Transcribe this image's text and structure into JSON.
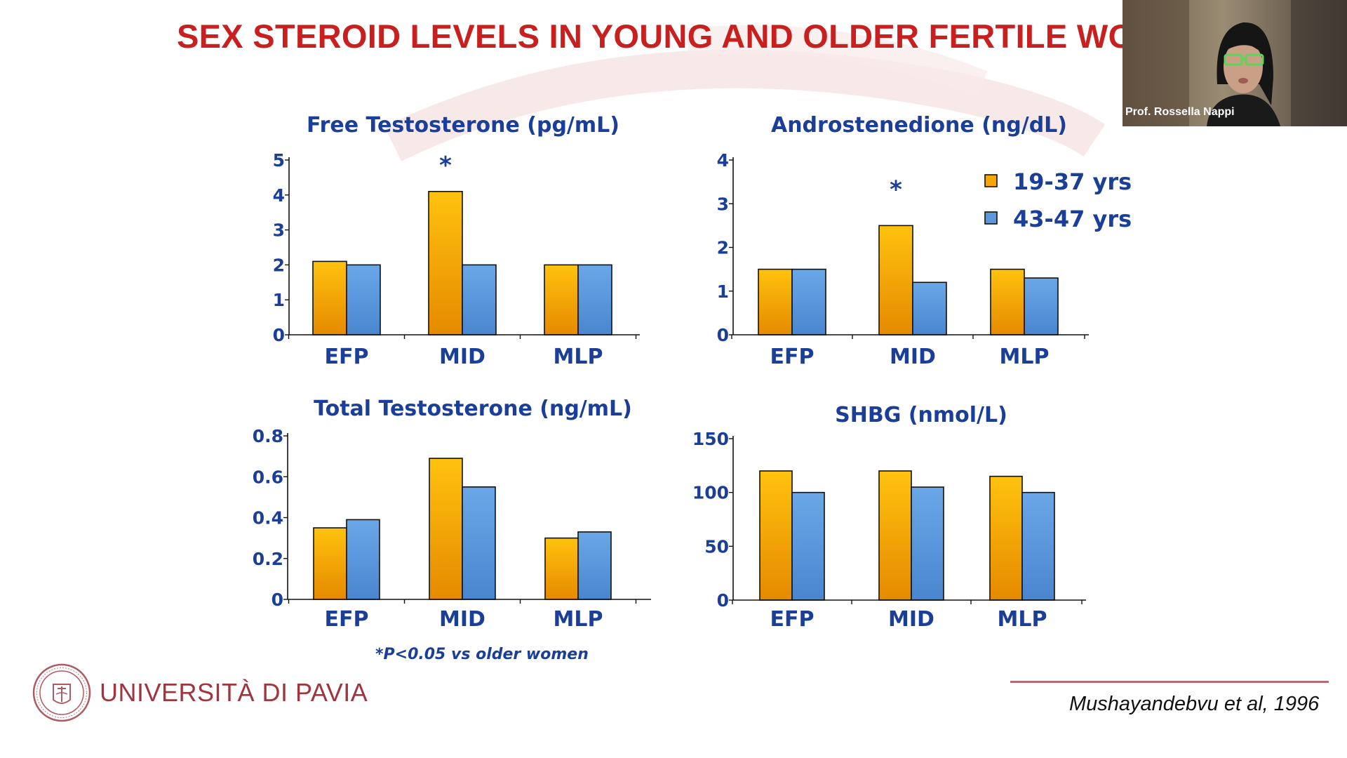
{
  "slide": {
    "title": "SEX STEROID LEVELS IN YOUNG AND OLDER FERTILE WOM",
    "footnote": "*P<0.05 vs older women",
    "university": "UNIVERSITÀ DI PAVIA",
    "citation": "Mushayandebvu et al, 1996"
  },
  "webcam": {
    "speaker_name": "Prof. Rossella Nappi"
  },
  "colors": {
    "title": "#c8201e",
    "text": "#1b3f99",
    "young_top": "#ffc20e",
    "young_bottom": "#e58a00",
    "old_top": "#6aa7e8",
    "old_bottom": "#4a86cf",
    "university": "#a0353e"
  },
  "legend": {
    "items": [
      {
        "label": "19-37 yrs",
        "color": "#f7a800"
      },
      {
        "label": "43-47 yrs",
        "color": "#5b97dc"
      }
    ]
  },
  "chart_data": [
    {
      "type": "bar",
      "title": "Free Testosterone (pg/mL)",
      "categories": [
        "EFP",
        "MID",
        "MLP"
      ],
      "series": [
        {
          "name": "19-37 yrs",
          "values": [
            2.1,
            4.1,
            2.0
          ]
        },
        {
          "name": "43-47 yrs",
          "values": [
            2.0,
            2.0,
            2.0
          ]
        }
      ],
      "ylim": [
        0,
        5
      ],
      "yticks": [
        0,
        1,
        2,
        3,
        4,
        5
      ],
      "ytick_labels": [
        "0",
        "1",
        "2",
        "3",
        "4",
        "5"
      ],
      "annotations": [
        {
          "category": "MID",
          "text": "*"
        }
      ]
    },
    {
      "type": "bar",
      "title": "Androstenedione (ng/dL)",
      "categories": [
        "EFP",
        "MID",
        "MLP"
      ],
      "series": [
        {
          "name": "19-37 yrs",
          "values": [
            1.5,
            2.5,
            1.5
          ]
        },
        {
          "name": "43-47 yrs",
          "values": [
            1.5,
            1.2,
            1.3
          ]
        }
      ],
      "ylim": [
        0,
        4
      ],
      "yticks": [
        0,
        1,
        2,
        3,
        4
      ],
      "ytick_labels": [
        "0",
        "1",
        "2",
        "3",
        "4"
      ],
      "annotations": [
        {
          "category": "MID",
          "text": "*"
        }
      ]
    },
    {
      "type": "bar",
      "title": "Total Testosterone (ng/mL)",
      "categories": [
        "EFP",
        "MID",
        "MLP"
      ],
      "series": [
        {
          "name": "19-37 yrs",
          "values": [
            0.35,
            0.69,
            0.3
          ]
        },
        {
          "name": "43-47 yrs",
          "values": [
            0.39,
            0.55,
            0.33
          ]
        }
      ],
      "ylim": [
        0,
        0.8
      ],
      "yticks": [
        0,
        0.2,
        0.4,
        0.6,
        0.8
      ],
      "ytick_labels": [
        "0",
        "0.2",
        "0.4",
        "0.6",
        "0.8"
      ],
      "annotations": []
    },
    {
      "type": "bar",
      "title": "SHBG (nmol/L)",
      "categories": [
        "EFP",
        "MID",
        "MLP"
      ],
      "series": [
        {
          "name": "19-37 yrs",
          "values": [
            120,
            120,
            115
          ]
        },
        {
          "name": "43-47 yrs",
          "values": [
            100,
            105,
            100
          ]
        }
      ],
      "ylim": [
        0,
        150
      ],
      "yticks": [
        0,
        50,
        100,
        150
      ],
      "ytick_labels": [
        "0",
        "50",
        "100",
        "150"
      ],
      "annotations": []
    }
  ]
}
